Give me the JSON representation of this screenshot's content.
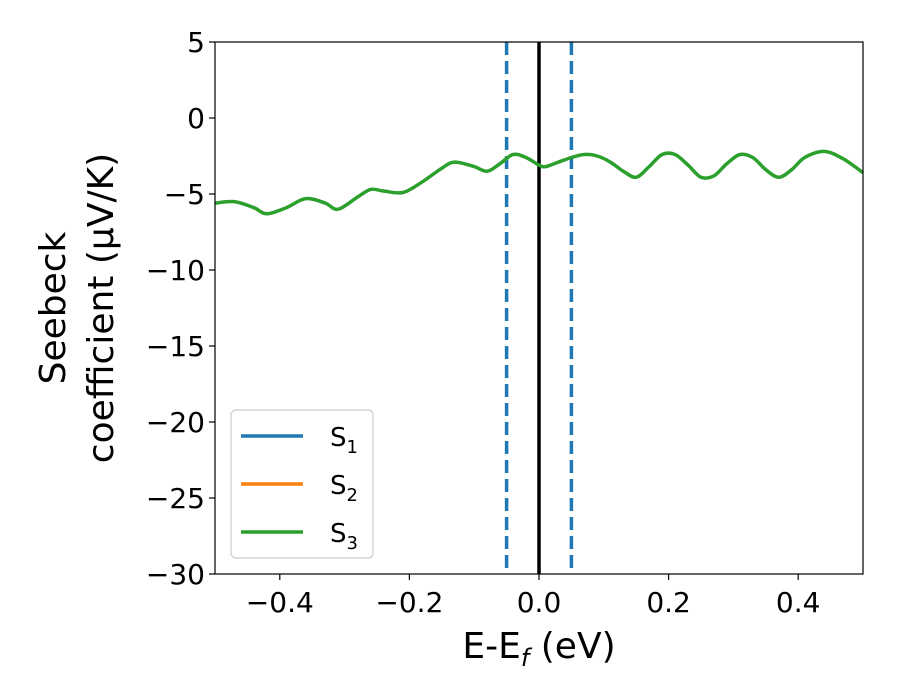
{
  "chart_data": {
    "type": "line",
    "xlabel": "E-E",
    "xlabel_sub": "f",
    "xlabel_unit": " (eV)",
    "ylabel_line1": "Seebeck",
    "ylabel_line2": "coefficient  (μV/K)",
    "xlim": [
      -0.5,
      0.5
    ],
    "ylim": [
      -30,
      5
    ],
    "xticks": [
      -0.4,
      -0.2,
      0.0,
      0.2,
      0.4
    ],
    "xtick_labels": [
      "−0.4",
      "−0.2",
      "0.0",
      "0.2",
      "0.4"
    ],
    "yticks": [
      5,
      0,
      -5,
      -10,
      -15,
      -20,
      -25,
      -30
    ],
    "ytick_labels": [
      "5",
      "0",
      "−5",
      "−10",
      "−15",
      "−20",
      "−25",
      "−30"
    ],
    "legend_position": "lower-left",
    "series": [
      {
        "name": "S",
        "sub": "1",
        "color": "#1f77b4",
        "x": [],
        "y": []
      },
      {
        "name": "S",
        "sub": "2",
        "color": "#ff7f0e",
        "x": [],
        "y": []
      },
      {
        "name": "S",
        "sub": "3",
        "color": "#2ca02c",
        "x": [
          -0.5,
          -0.47,
          -0.44,
          -0.42,
          -0.39,
          -0.36,
          -0.33,
          -0.31,
          -0.28,
          -0.26,
          -0.24,
          -0.21,
          -0.18,
          -0.15,
          -0.13,
          -0.1,
          -0.08,
          -0.06,
          -0.04,
          -0.02,
          0.0,
          0.01,
          0.03,
          0.05,
          0.07,
          0.09,
          0.11,
          0.13,
          0.15,
          0.17,
          0.19,
          0.21,
          0.23,
          0.25,
          0.27,
          0.29,
          0.31,
          0.33,
          0.35,
          0.37,
          0.39,
          0.41,
          0.44,
          0.47,
          0.5
        ],
        "y": [
          -5.6,
          -5.5,
          -5.9,
          -6.3,
          -5.9,
          -5.3,
          -5.6,
          -6.0,
          -5.2,
          -4.7,
          -4.8,
          -4.9,
          -4.2,
          -3.3,
          -2.9,
          -3.2,
          -3.5,
          -3.0,
          -2.4,
          -2.6,
          -3.1,
          -3.2,
          -2.9,
          -2.6,
          -2.4,
          -2.5,
          -2.9,
          -3.5,
          -3.9,
          -3.2,
          -2.4,
          -2.4,
          -3.1,
          -3.9,
          -3.8,
          -3.0,
          -2.4,
          -2.6,
          -3.4,
          -3.9,
          -3.4,
          -2.6,
          -2.2,
          -2.7,
          -3.6
        ]
      }
    ],
    "reference_lines": [
      {
        "x": 0.0,
        "style": "solid",
        "color": "#000000"
      },
      {
        "x": -0.05,
        "style": "dashed",
        "color": "#1f77b4"
      },
      {
        "x": 0.05,
        "style": "dashed",
        "color": "#1f77b4"
      }
    ]
  }
}
